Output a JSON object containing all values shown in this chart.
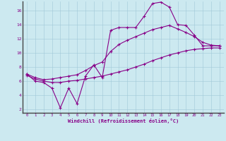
{
  "xlabel": "Windchill (Refroidissement éolien,°C)",
  "bg_color": "#cce9f0",
  "line_color": "#880088",
  "xmin": 0,
  "xmax": 23,
  "ymin": 2,
  "ymax": 17,
  "yticks": [
    2,
    4,
    6,
    8,
    10,
    12,
    14,
    16
  ],
  "xticks": [
    0,
    1,
    2,
    3,
    4,
    5,
    6,
    7,
    8,
    9,
    10,
    11,
    12,
    13,
    14,
    15,
    16,
    17,
    18,
    19,
    20,
    21,
    22,
    23
  ],
  "line1_x": [
    0,
    1,
    2,
    3,
    4,
    5,
    6,
    7,
    8,
    9,
    10,
    11,
    12,
    13,
    14,
    15,
    16,
    17,
    18,
    19,
    20,
    21,
    22,
    23
  ],
  "line1_y": [
    7.0,
    6.0,
    5.8,
    5.0,
    2.2,
    5.0,
    2.8,
    6.7,
    8.3,
    6.5,
    13.2,
    13.6,
    13.6,
    13.6,
    15.2,
    17.0,
    17.2,
    16.5,
    14.0,
    13.9,
    12.5,
    11.0,
    11.0,
    11.0
  ],
  "line2_x": [
    0,
    1,
    2,
    3,
    4,
    5,
    6,
    7,
    8,
    9,
    10,
    11,
    12,
    13,
    14,
    15,
    16,
    17,
    18,
    19,
    20,
    21,
    22,
    23
  ],
  "line2_y": [
    6.8,
    6.3,
    6.0,
    5.8,
    5.8,
    6.0,
    6.1,
    6.3,
    6.5,
    6.7,
    7.0,
    7.3,
    7.6,
    8.0,
    8.4,
    8.9,
    9.3,
    9.7,
    10.0,
    10.3,
    10.5,
    10.6,
    10.7,
    10.7
  ],
  "line3_x": [
    0,
    1,
    2,
    3,
    4,
    5,
    6,
    7,
    8,
    9,
    10,
    11,
    12,
    13,
    14,
    15,
    16,
    17,
    18,
    19,
    20,
    21,
    22,
    23
  ],
  "line3_y": [
    7.0,
    6.5,
    6.2,
    6.3,
    6.5,
    6.7,
    6.9,
    7.5,
    8.2,
    8.7,
    10.2,
    11.2,
    11.8,
    12.3,
    12.8,
    13.3,
    13.6,
    13.9,
    13.4,
    12.9,
    12.3,
    11.5,
    11.1,
    11.0
  ]
}
